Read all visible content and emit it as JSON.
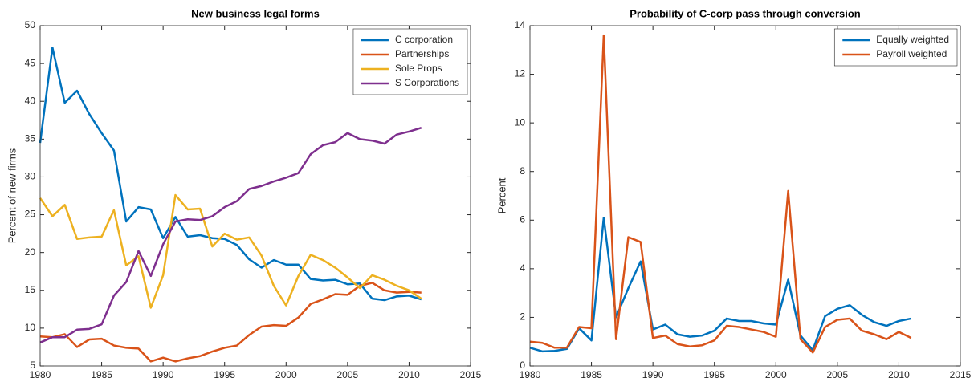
{
  "chart_data": [
    {
      "type": "line",
      "title": "New business legal forms",
      "ylabel": "Percent of new firms",
      "x": [
        1980,
        1981,
        1982,
        1983,
        1984,
        1985,
        1986,
        1987,
        1988,
        1989,
        1990,
        1991,
        1992,
        1993,
        1994,
        1995,
        1996,
        1997,
        1998,
        1999,
        2000,
        2001,
        2002,
        2003,
        2004,
        2005,
        2006,
        2007,
        2008,
        2009,
        2010,
        2011
      ],
      "series": [
        {
          "name": "C corporation",
          "color": "#0072BD",
          "values": [
            34.5,
            47.1,
            39.8,
            41.4,
            38.3,
            35.8,
            33.5,
            24.1,
            26.0,
            25.7,
            21.9,
            24.7,
            22.1,
            22.3,
            21.9,
            21.8,
            21.0,
            19.1,
            18.0,
            19.0,
            18.4,
            18.4,
            16.5,
            16.3,
            16.4,
            15.8,
            15.9,
            13.9,
            13.7,
            14.2,
            14.3,
            13.8
          ]
        },
        {
          "name": "Partnerships",
          "color": "#D95319",
          "values": [
            8.9,
            8.8,
            9.2,
            7.5,
            8.5,
            8.6,
            7.7,
            7.4,
            7.3,
            5.6,
            6.1,
            5.6,
            6.0,
            6.3,
            6.9,
            7.4,
            7.7,
            9.1,
            10.2,
            10.4,
            10.3,
            11.4,
            13.2,
            13.8,
            14.5,
            14.4,
            15.6,
            16.0,
            15.0,
            14.7,
            14.8,
            14.7
          ]
        },
        {
          "name": "Sole Props",
          "color": "#EDB120",
          "values": [
            27.2,
            24.8,
            26.3,
            21.8,
            22.0,
            22.1,
            25.6,
            18.3,
            19.5,
            12.7,
            17.0,
            27.6,
            25.7,
            25.8,
            20.8,
            22.5,
            21.7,
            22.0,
            19.6,
            15.6,
            13.0,
            16.9,
            19.7,
            19.0,
            18.0,
            16.7,
            15.3,
            17.0,
            16.4,
            15.6,
            15.0,
            13.9
          ]
        },
        {
          "name": "S Corporations",
          "color": "#7E2F8E",
          "values": [
            8.1,
            8.8,
            8.8,
            9.8,
            9.9,
            10.5,
            14.3,
            16.1,
            20.2,
            16.9,
            21.1,
            24.1,
            24.4,
            24.3,
            24.8,
            26.0,
            26.8,
            28.4,
            28.8,
            29.4,
            29.9,
            30.5,
            33.0,
            34.2,
            34.6,
            35.8,
            35.0,
            34.8,
            34.4,
            35.6,
            36.0,
            36.5
          ]
        }
      ],
      "xlim": [
        1980,
        2015
      ],
      "xticks": [
        1980,
        1985,
        1990,
        1995,
        2000,
        2005,
        2010,
        2015
      ],
      "ylim": [
        5,
        50
      ],
      "yticks": [
        5,
        10,
        15,
        20,
        25,
        30,
        35,
        40,
        45,
        50
      ],
      "grid": false,
      "legend": "northeast"
    },
    {
      "type": "line",
      "title": "Probability of C-corp pass through conversion",
      "ylabel": "Percent",
      "x": [
        1980,
        1981,
        1982,
        1983,
        1984,
        1985,
        1986,
        1987,
        1988,
        1989,
        1990,
        1991,
        1992,
        1993,
        1994,
        1995,
        1996,
        1997,
        1998,
        1999,
        2000,
        2001,
        2002,
        2003,
        2004,
        2005,
        2006,
        2007,
        2008,
        2009,
        2010,
        2011
      ],
      "series": [
        {
          "name": "Equally weighted",
          "color": "#0072BD",
          "values": [
            0.75,
            0.6,
            0.62,
            0.7,
            1.55,
            1.05,
            6.1,
            2.0,
            3.2,
            4.3,
            1.5,
            1.7,
            1.3,
            1.2,
            1.25,
            1.45,
            1.95,
            1.85,
            1.85,
            1.75,
            1.7,
            3.55,
            1.25,
            0.65,
            2.05,
            2.35,
            2.5,
            2.1,
            1.8,
            1.65,
            1.85,
            1.95
          ]
        },
        {
          "name": "Payroll weighted",
          "color": "#D95319",
          "values": [
            1.0,
            0.95,
            0.75,
            0.75,
            1.6,
            1.55,
            13.6,
            1.1,
            5.3,
            5.1,
            1.15,
            1.25,
            0.9,
            0.8,
            0.85,
            1.05,
            1.65,
            1.6,
            1.5,
            1.4,
            1.2,
            7.2,
            1.1,
            0.55,
            1.6,
            1.9,
            1.95,
            1.45,
            1.3,
            1.1,
            1.4,
            1.15
          ]
        }
      ],
      "xlim": [
        1980,
        2015
      ],
      "xticks": [
        1980,
        1985,
        1990,
        1995,
        2000,
        2005,
        2010,
        2015
      ],
      "ylim": [
        0,
        14
      ],
      "yticks": [
        0,
        2,
        4,
        6,
        8,
        10,
        12,
        14
      ],
      "grid": false,
      "legend": "northeast"
    }
  ]
}
